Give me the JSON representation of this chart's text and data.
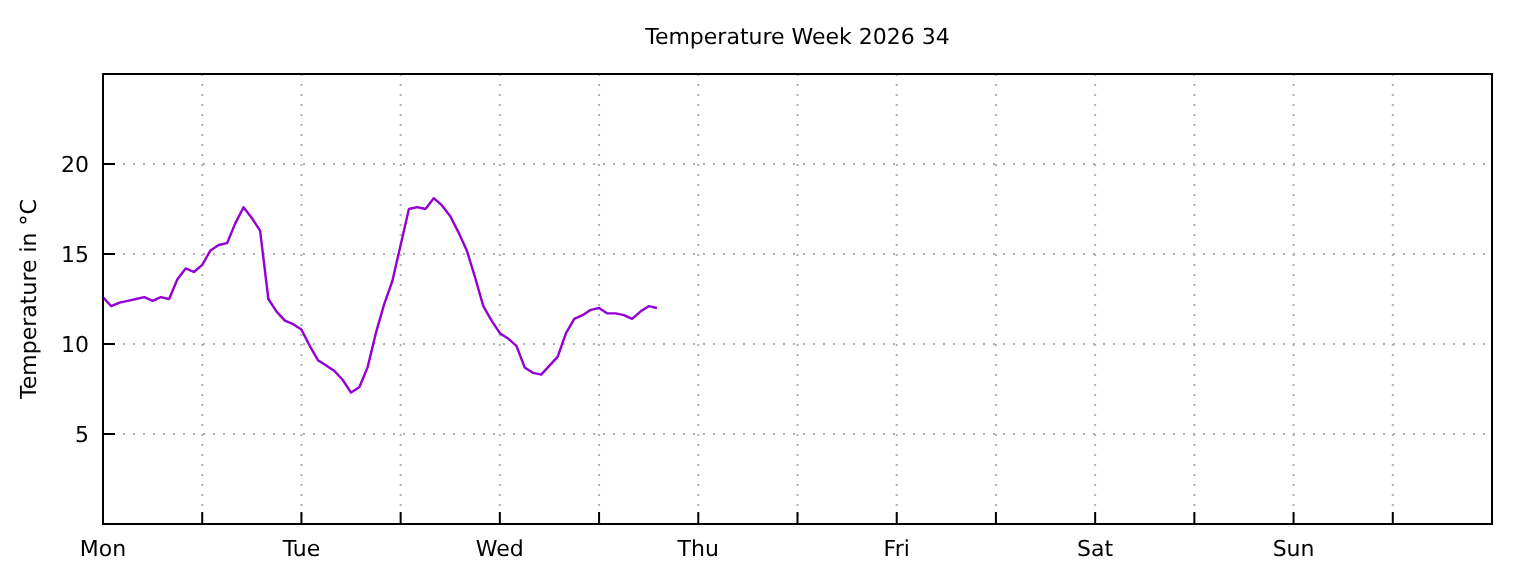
{
  "chart_data": {
    "type": "line",
    "title": "Temperature Week 2026 34",
    "ylabel": "Temperature in °C",
    "ylim": [
      0,
      25
    ],
    "yticks": [
      5,
      10,
      15,
      20
    ],
    "grid": true,
    "categories": [
      "Mon",
      null,
      null,
      null,
      null,
      null,
      null,
      null,
      null,
      null,
      null,
      null,
      null,
      null,
      null,
      null,
      null,
      null,
      null,
      null,
      null,
      null,
      null,
      null,
      "Tue",
      null,
      null,
      null,
      null,
      null,
      null,
      null,
      null,
      null,
      null,
      null,
      null,
      null,
      null,
      null,
      null,
      null,
      null,
      null,
      null,
      null,
      null,
      null,
      "Wed",
      null,
      null,
      null,
      null,
      null,
      null,
      null,
      null,
      null,
      null,
      null,
      null,
      null,
      null,
      null,
      null,
      null,
      null,
      null,
      null,
      null,
      null,
      null,
      "Thu",
      null,
      null,
      null,
      null,
      null,
      null,
      null,
      null,
      null,
      null,
      null,
      null,
      null,
      null,
      null,
      null,
      null,
      null,
      null,
      null,
      null,
      null,
      null,
      "Fri",
      null,
      null,
      null,
      null,
      null,
      null,
      null,
      null,
      null,
      null,
      null,
      null,
      null,
      null,
      null,
      null,
      null,
      null,
      null,
      null,
      null,
      null,
      null,
      "Sat",
      null,
      null,
      null,
      null,
      null,
      null,
      null,
      null,
      null,
      null,
      null,
      null,
      null,
      null,
      null,
      null,
      null,
      null,
      null,
      null,
      null,
      null,
      null,
      "Sun",
      null,
      null,
      null,
      null,
      null,
      null,
      null,
      null,
      null,
      null,
      null,
      null,
      null,
      null,
      null,
      null,
      null,
      null,
      null,
      null,
      null,
      null,
      null
    ],
    "series": [
      {
        "color": "#9400d3",
        "values": [
          12.6,
          12.1,
          12.3,
          12.4,
          12.5,
          12.6,
          12.4,
          12.6,
          12.5,
          13.6,
          14.2,
          14.0,
          14.4,
          15.2,
          15.5,
          15.6,
          16.7,
          17.6,
          17.0,
          16.3,
          12.5,
          11.8,
          11.3,
          11.1,
          10.8,
          9.9,
          9.1,
          8.8,
          8.5,
          8.0,
          7.3,
          7.6,
          8.7,
          10.6,
          12.2,
          13.5,
          15.5,
          17.5,
          17.6,
          17.5,
          18.1,
          17.7,
          17.1,
          16.2,
          15.2,
          13.7,
          12.1,
          11.3,
          10.6,
          10.3,
          9.9,
          8.7,
          8.4,
          8.3,
          8.8,
          9.3,
          10.6,
          11.4,
          11.6,
          11.9,
          12.0,
          11.7,
          11.7,
          11.6,
          11.4,
          11.8,
          12.1,
          12.0,
          null,
          null,
          null,
          null,
          null,
          null,
          null,
          null,
          null,
          null,
          null,
          null,
          null,
          null,
          null,
          null,
          null,
          null,
          null,
          null,
          null,
          null,
          null,
          null,
          null,
          null,
          null,
          null,
          null,
          null,
          null,
          null,
          null,
          null,
          null,
          null,
          null,
          null,
          null,
          null,
          null,
          null,
          null,
          null,
          null,
          null,
          null,
          null,
          null,
          null,
          null,
          null,
          null,
          null,
          null,
          null,
          null,
          null,
          null,
          null,
          null,
          null,
          null,
          null,
          null,
          null,
          null,
          null,
          null,
          null,
          null,
          null,
          null,
          null,
          null,
          null,
          null,
          null,
          null,
          null,
          null,
          null,
          null,
          null,
          null,
          null,
          null,
          null,
          null,
          null,
          null,
          null,
          null,
          null,
          null,
          null,
          null,
          null,
          null,
          null
        ]
      }
    ]
  }
}
